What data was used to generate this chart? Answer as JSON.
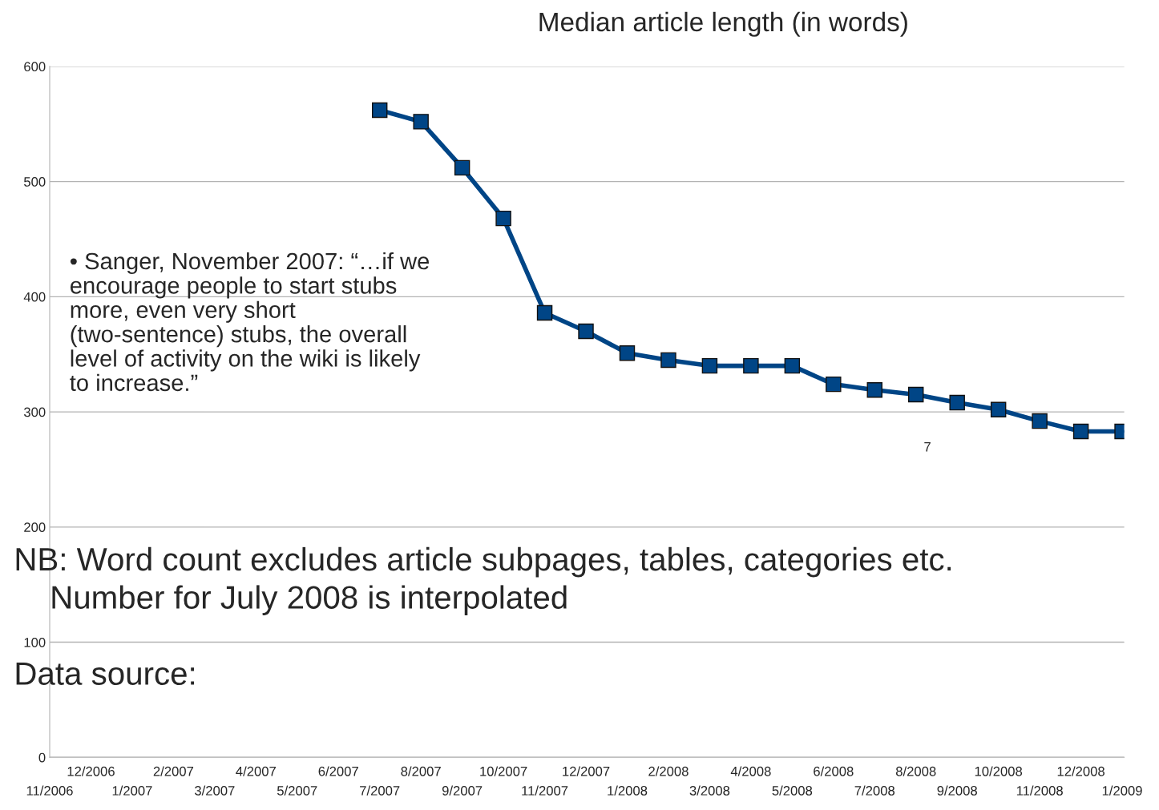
{
  "chart_data": {
    "type": "line",
    "title": "Median article length (in words)",
    "categories": [
      "11/2006",
      "12/2006",
      "1/2007",
      "2/2007",
      "3/2007",
      "4/2007",
      "5/2007",
      "6/2007",
      "7/2007",
      "8/2007",
      "9/2007",
      "10/2007",
      "11/2007",
      "12/2007",
      "1/2008",
      "2/2008",
      "3/2008",
      "4/2008",
      "5/2008",
      "6/2008",
      "7/2008",
      "8/2008",
      "9/2008",
      "10/2008",
      "11/2008",
      "12/2008",
      "1/2009"
    ],
    "series": [
      {
        "color": "#004586",
        "values": [
          null,
          null,
          null,
          null,
          null,
          null,
          null,
          null,
          562,
          552,
          512,
          468,
          386,
          370,
          351,
          345,
          340,
          340,
          340,
          324,
          319,
          315,
          308,
          302,
          292,
          283,
          283
        ]
      }
    ],
    "ylim": [
      0,
      600
    ],
    "yticks": [
      0,
      100,
      200,
      300,
      400,
      500,
      600
    ],
    "grid": "y",
    "legend": false,
    "marker": "square",
    "line_style": "solid",
    "annotations": [
      "• Sanger, November 2007: “…if we encourage people to start stubs more, even very short (two-sentence) stubs, the overall level of activity on the wiki is likely to increase.”",
      "7",
      "NB: Word count excludes article subpages, tables, categories etc.",
      "Number for July 2008 is interpolated",
      "Data source:"
    ]
  }
}
